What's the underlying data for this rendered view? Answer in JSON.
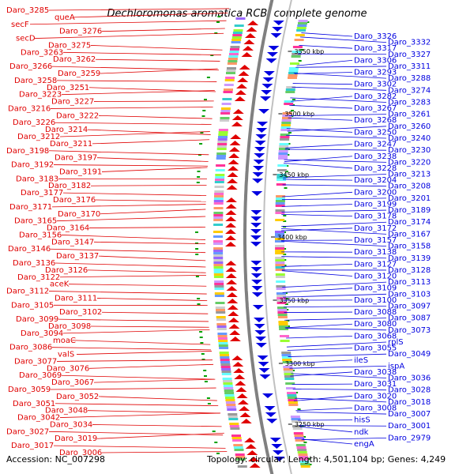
{
  "title": "Dechloromonas aromatica RCB, complete genome",
  "accession": "Accession: NC_007298",
  "topology": "Topology: circular; Length: 4,501,104 bp; Genes: 4,249",
  "colors": {
    "forward": "#e00000",
    "reverse": "#0000e0",
    "backbone": "#808080",
    "tick": "#00a000"
  },
  "ruler_ticks": [
    {
      "label": "3550 kbp"
    },
    {
      "label": "3500 kbp"
    },
    {
      "label": "3450 kbp"
    },
    {
      "label": "3400 kbp"
    },
    {
      "label": "3350 kbp"
    },
    {
      "label": "3300 kbp"
    },
    {
      "label": "3250 kbp"
    }
  ],
  "left_labels": [
    "Daro_3285",
    "queA",
    "secF",
    "Daro_3276",
    "secD",
    "Daro_3275",
    "Daro_3263",
    "Daro_3262",
    "Daro_3266",
    "Daro_3259",
    "Daro_3258",
    "Daro_3251",
    "Daro_3223",
    "Daro_3227",
    "Daro_3216",
    "Daro_3222",
    "Daro_3226",
    "Daro_3214",
    "Daro_3212",
    "Daro_3211",
    "Daro_3198",
    "Daro_3197",
    "Daro_3192",
    "Daro_3191",
    "Daro_3183",
    "Daro_3182",
    "Daro_3177",
    "Daro_3176",
    "Daro_3171",
    "Daro_3170",
    "Daro_3165",
    "Daro_3164",
    "Daro_3156",
    "Daro_3147",
    "Daro_3146",
    "Daro_3137",
    "Daro_3136",
    "Daro_3126",
    "Daro_3122",
    "aceK",
    "Daro_3112",
    "Daro_3111",
    "Daro_3105",
    "Daro_3102",
    "Daro_3099",
    "Daro_3098",
    "Daro_3094",
    "moaC",
    "Daro_3086",
    "valS",
    "Daro_3077",
    "Daro_3076",
    "Daro_3069",
    "Daro_3067",
    "Daro_3059",
    "Daro_3052",
    "Daro_3051",
    "Daro_3048",
    "Daro_3042",
    "Daro_3034",
    "Daro_3027",
    "Daro_3019",
    "Daro_3017",
    "Daro_3006"
  ],
  "right_labels": [
    "Daro_3326",
    "Daro_3332",
    "Daro_3317",
    "Daro_3327",
    "Daro_3306",
    "Daro_3311",
    "Daro_3293",
    "Daro_3288",
    "Daro_3302",
    "Daro_3274",
    "Daro_3282",
    "Daro_3283",
    "Daro_3267",
    "Daro_3261",
    "Daro_3268",
    "Daro_3260",
    "Daro_3250",
    "Daro_3240",
    "Daro_3247",
    "Daro_3230",
    "Daro_3238",
    "Daro_3220",
    "Daro_3228",
    "Daro_3213",
    "Daro_3204",
    "Daro_3208",
    "Daro_3200",
    "Daro_3201",
    "Daro_3199",
    "Daro_3189",
    "Daro_3178",
    "Daro_3174",
    "Daro_3172",
    "Daro_3167",
    "Daro_3157",
    "Daro_3158",
    "Daro_3138",
    "Daro_3139",
    "Daro_3127",
    "Daro_3128",
    "Daro_3120",
    "Daro_3113",
    "Daro_3109",
    "Daro_3103",
    "Daro_3100",
    "Daro_3097",
    "Daro_3088",
    "Daro_3087",
    "Daro_3080",
    "Daro_3073",
    "Daro_3068",
    "rplS",
    "Daro_3055",
    "Daro_3049",
    "ileS",
    "ispA",
    "Daro_3038",
    "Daro_3036",
    "Daro_3031",
    "Daro_3028",
    "Daro_3020",
    "Daro_3018",
    "Daro_3008",
    "Daro_3007",
    "hisS",
    "Daro_3001",
    "ndk",
    "Daro_2979",
    "engA"
  ]
}
